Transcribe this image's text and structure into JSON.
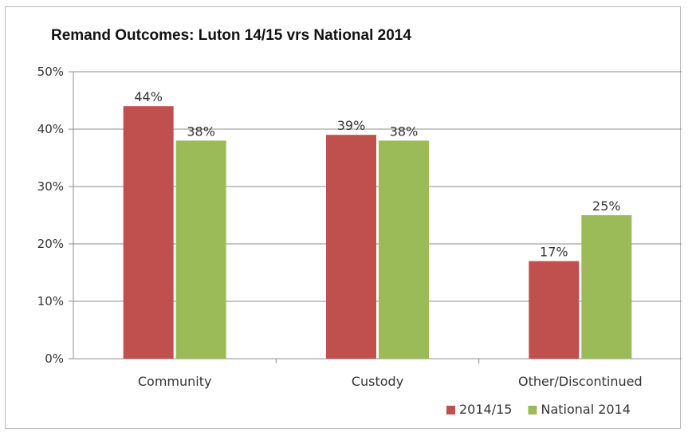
{
  "chart_data": {
    "type": "bar",
    "title": "Remand Outcomes: Luton 14/15 vrs National 2014",
    "categories": [
      "Community",
      "Custody",
      "Other/Discontinued"
    ],
    "series": [
      {
        "name": "2014/15",
        "values": [
          44,
          39,
          17
        ],
        "labels": [
          "44%",
          "39%",
          "17%"
        ],
        "color": "#c0504d"
      },
      {
        "name": "National 2014",
        "values": [
          38,
          38,
          25
        ],
        "labels": [
          "38%",
          "38%",
          "25%"
        ],
        "color": "#9bbb59"
      }
    ],
    "ylim": [
      0,
      50
    ],
    "yticks": [
      "0%",
      "10%",
      "20%",
      "30%",
      "40%",
      "50%"
    ],
    "grid": true,
    "legend": "bottom-right",
    "xlabel": "",
    "ylabel": ""
  }
}
